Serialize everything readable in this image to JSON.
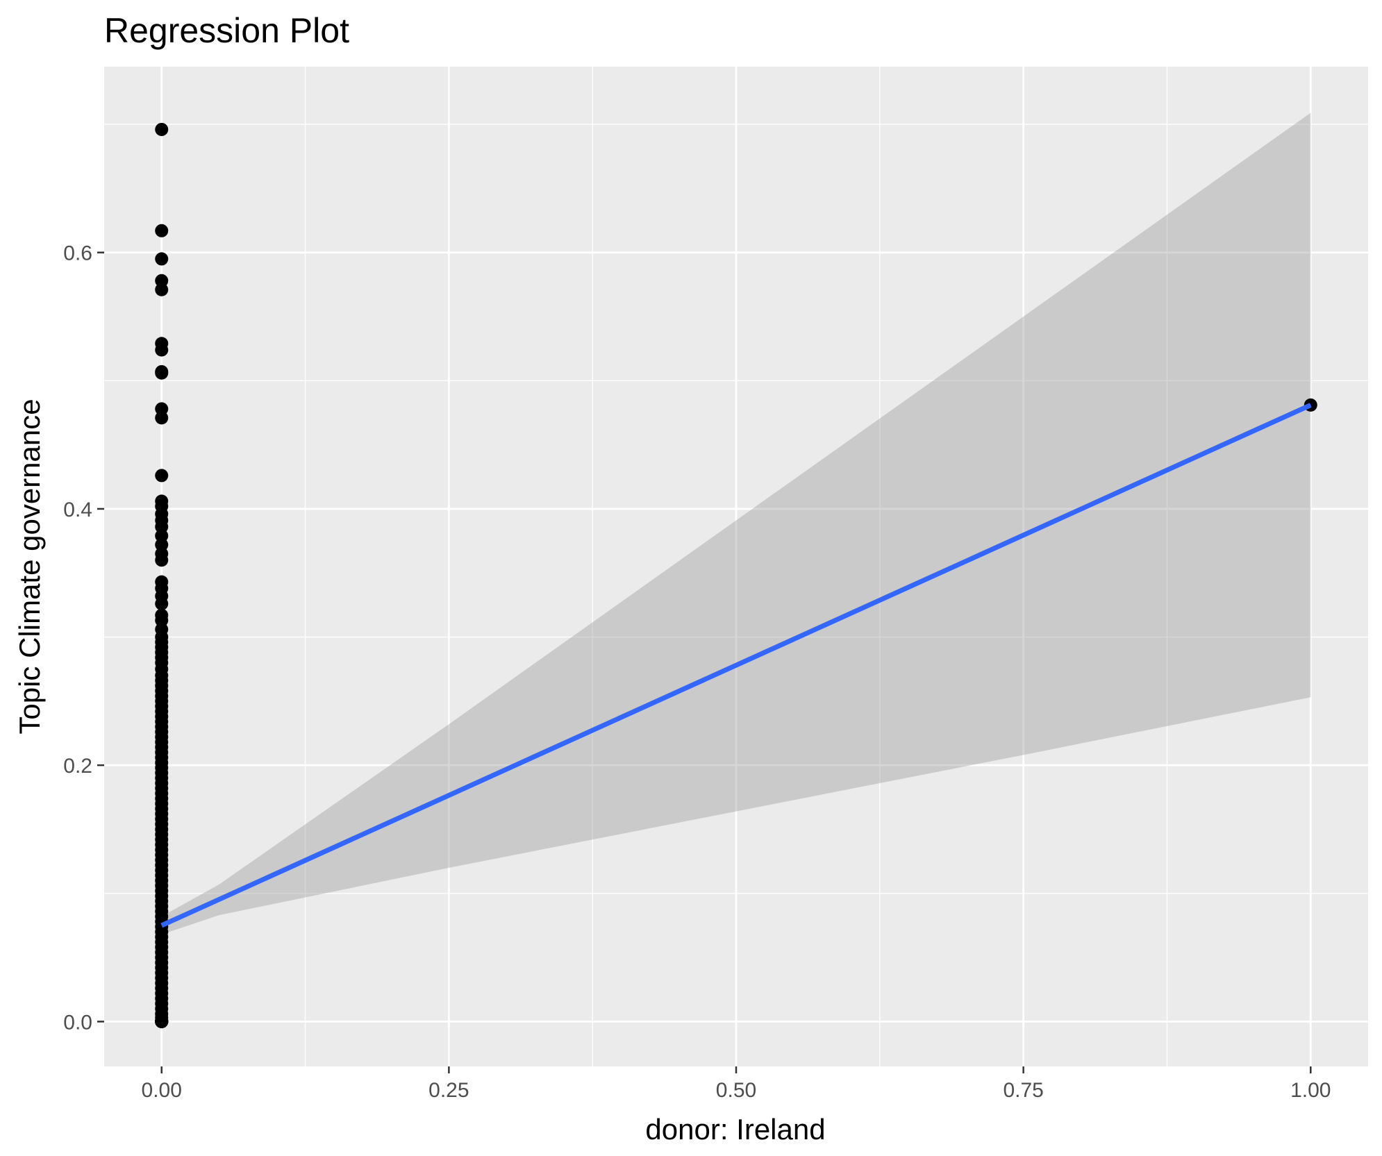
{
  "chart_data": {
    "type": "scatter",
    "title": "Regression Plot",
    "xlabel": "donor: Ireland",
    "ylabel": "Topic Climate governance",
    "xlim": [
      -0.05,
      1.05
    ],
    "ylim": [
      -0.035,
      0.745
    ],
    "x_ticks": [
      0.0,
      0.25,
      0.5,
      0.75,
      1.0
    ],
    "x_tick_labels": [
      "0.00",
      "0.25",
      "0.50",
      "0.75",
      "1.00"
    ],
    "y_ticks": [
      0.0,
      0.2,
      0.4,
      0.6
    ],
    "y_tick_labels": [
      "0.0",
      "0.2",
      "0.4",
      "0.6"
    ],
    "grid": true,
    "legend": "none",
    "colors": {
      "panel": "#EBEBEB",
      "grid": "#FFFFFF",
      "points": "#000000",
      "line": "#3366FF",
      "band": "#999999",
      "tick_text": "#4D4D4D"
    },
    "series": [
      {
        "type": "scatter",
        "x": [
          0,
          0,
          0,
          0,
          0,
          0,
          0,
          0,
          0,
          0,
          0,
          0,
          0,
          0,
          0,
          0,
          0,
          0,
          0,
          0,
          0,
          0,
          0,
          0,
          0,
          0,
          0,
          0,
          0,
          0,
          0,
          0,
          0,
          0,
          0,
          0,
          0,
          0,
          0,
          0,
          0,
          0,
          0,
          0,
          0,
          0,
          0,
          0,
          0,
          0,
          0,
          0,
          0,
          0,
          0,
          0,
          0,
          0,
          0,
          0,
          0,
          0,
          0,
          0,
          0,
          0,
          0,
          0,
          0,
          0,
          0,
          0,
          0,
          0,
          0,
          0,
          0,
          0,
          0,
          0,
          0,
          0,
          0,
          0,
          0,
          0,
          0,
          0,
          0,
          0,
          0,
          0,
          0,
          0,
          0,
          0,
          0,
          0,
          0,
          0,
          0,
          0,
          0,
          0,
          0,
          0,
          0,
          0,
          0,
          0,
          0,
          0,
          0,
          0,
          0,
          0,
          0,
          0,
          0,
          0,
          0,
          0,
          0,
          0,
          0,
          1
        ],
        "y": [
          0.696,
          0.617,
          0.595,
          0.578,
          0.571,
          0.529,
          0.524,
          0.507,
          0.506,
          0.478,
          0.471,
          0.426,
          0.406,
          0.402,
          0.396,
          0.391,
          0.386,
          0.379,
          0.372,
          0.365,
          0.36,
          0.343,
          0.338,
          0.332,
          0.326,
          0.317,
          0.313,
          0.306,
          0.3,
          0.296,
          0.292,
          0.288,
          0.284,
          0.28,
          0.275,
          0.27,
          0.266,
          0.262,
          0.258,
          0.254,
          0.25,
          0.246,
          0.242,
          0.238,
          0.234,
          0.23,
          0.226,
          0.222,
          0.218,
          0.214,
          0.21,
          0.206,
          0.202,
          0.198,
          0.194,
          0.19,
          0.186,
          0.182,
          0.178,
          0.174,
          0.17,
          0.166,
          0.162,
          0.158,
          0.154,
          0.15,
          0.146,
          0.142,
          0.138,
          0.134,
          0.13,
          0.126,
          0.122,
          0.118,
          0.114,
          0.11,
          0.106,
          0.102,
          0.098,
          0.094,
          0.09,
          0.086,
          0.082,
          0.078,
          0.074,
          0.07,
          0.066,
          0.062,
          0.058,
          0.054,
          0.05,
          0.046,
          0.042,
          0.038,
          0.034,
          0.03,
          0.026,
          0.022,
          0.018,
          0.014,
          0.01,
          0.006,
          0.003,
          0.001,
          0.0,
          0.0,
          0.0,
          0.0,
          0.0,
          0.0,
          0.0,
          0.0,
          0.0,
          0.0,
          0.0,
          0.0,
          0.0,
          0.0,
          0.0,
          0.0,
          0.0,
          0.0,
          0.0,
          0.0,
          0.0,
          0.481
        ]
      },
      {
        "type": "line",
        "x": [
          0,
          1
        ],
        "y": [
          0.075,
          0.481
        ]
      },
      {
        "type": "area",
        "x": [
          0,
          0.05,
          0.25,
          0.5,
          0.75,
          1
        ],
        "upper": [
          0.082,
          0.107,
          0.232,
          0.391,
          0.55,
          0.709
        ],
        "lower": [
          0.068,
          0.083,
          0.12,
          0.164,
          0.208,
          0.253
        ]
      }
    ]
  }
}
